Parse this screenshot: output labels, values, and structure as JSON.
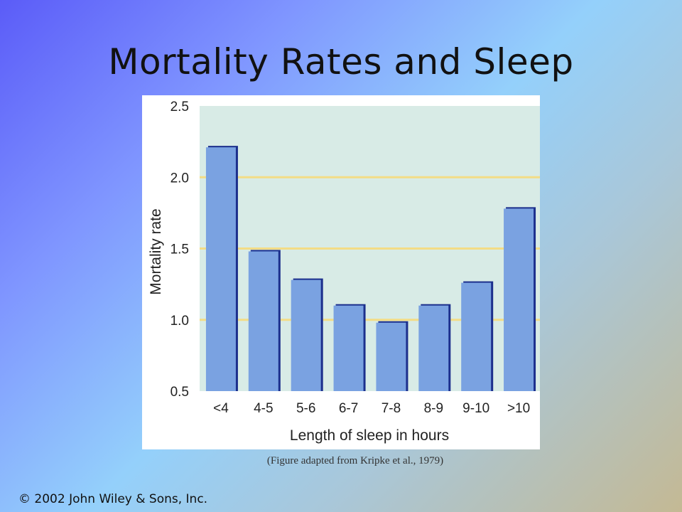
{
  "slide": {
    "title": "Mortality Rates and Sleep",
    "caption": "(Figure adapted from Kripke et al., 1979)",
    "copyright": "©  2002 John Wiley & Sons, Inc."
  },
  "colors": {
    "plot_background": "#d8ebe6",
    "gridline": "#f3dc86",
    "bar_fill": "#7aa2e1",
    "bar_shadow": "#1c2f8c"
  },
  "chart_data": {
    "type": "bar",
    "categories": [
      "<4",
      "4-5",
      "5-6",
      "6-7",
      "7-8",
      "8-9",
      "9-10",
      ">10"
    ],
    "values": [
      2.22,
      1.49,
      1.29,
      1.11,
      0.99,
      1.11,
      1.27,
      1.79
    ],
    "yticks": [
      "0.5",
      "1.0",
      "1.5",
      "2.0",
      "2.5"
    ],
    "ylim": [
      0.5,
      2.5
    ],
    "xlabel": "Length of sleep in hours",
    "ylabel": "Mortality rate",
    "grid": true
  }
}
